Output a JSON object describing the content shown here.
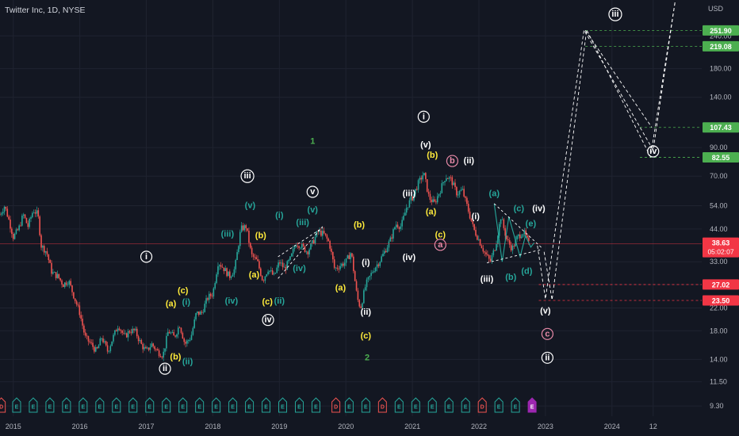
{
  "chart_data": {
    "type": "candlestick",
    "title": "Twitter Inc, 1D, NYSE",
    "currency": "USD",
    "scale": "log",
    "ylim": [
      8.5,
      320
    ],
    "xlim": [
      2014.8,
      2025.35
    ],
    "grid": true,
    "price_ticks": [
      9.3,
      11.5,
      14.0,
      18.0,
      22.0,
      27.0,
      33.0,
      44.0,
      54.0,
      70.0,
      90.0,
      140.0,
      180.0,
      240.0
    ],
    "year_ticks": [
      {
        "label": "2015",
        "t": 2015.0
      },
      {
        "label": "2016",
        "t": 2016.0
      },
      {
        "label": "2017",
        "t": 2017.0
      },
      {
        "label": "2018",
        "t": 2018.0
      },
      {
        "label": "2019",
        "t": 2019.0
      },
      {
        "label": "2020",
        "t": 2020.0
      },
      {
        "label": "2021",
        "t": 2021.0
      },
      {
        "label": "2022",
        "t": 2022.0
      },
      {
        "label": "2023",
        "t": 2023.0
      },
      {
        "label": "2024",
        "t": 2024.0
      },
      {
        "label": "12",
        "t": 2024.62
      }
    ],
    "price_path": [
      [
        2014.8,
        50
      ],
      [
        2014.87,
        54
      ],
      [
        2014.93,
        48
      ],
      [
        2015.0,
        41
      ],
      [
        2015.08,
        44
      ],
      [
        2015.15,
        50
      ],
      [
        2015.22,
        45
      ],
      [
        2015.3,
        52
      ],
      [
        2015.37,
        50
      ],
      [
        2015.42,
        38
      ],
      [
        2015.5,
        36
      ],
      [
        2015.58,
        30
      ],
      [
        2015.67,
        29
      ],
      [
        2015.75,
        27
      ],
      [
        2015.83,
        28
      ],
      [
        2015.92,
        24
      ],
      [
        2016.0,
        21
      ],
      [
        2016.08,
        17
      ],
      [
        2016.17,
        16
      ],
      [
        2016.25,
        15
      ],
      [
        2016.33,
        17
      ],
      [
        2016.42,
        15
      ],
      [
        2016.5,
        17
      ],
      [
        2016.58,
        19
      ],
      [
        2016.67,
        17
      ],
      [
        2016.75,
        18
      ],
      [
        2016.83,
        18
      ],
      [
        2016.92,
        16
      ],
      [
        2017.0,
        15
      ],
      [
        2017.08,
        16
      ],
      [
        2017.17,
        15
      ],
      [
        2017.25,
        14.5
      ],
      [
        2017.33,
        18
      ],
      [
        2017.42,
        17
      ],
      [
        2017.5,
        19
      ],
      [
        2017.58,
        16
      ],
      [
        2017.67,
        17
      ],
      [
        2017.75,
        21
      ],
      [
        2017.83,
        21
      ],
      [
        2017.92,
        24
      ],
      [
        2018.0,
        25
      ],
      [
        2018.08,
        33
      ],
      [
        2018.17,
        31
      ],
      [
        2018.25,
        29
      ],
      [
        2018.33,
        31
      ],
      [
        2018.42,
        44
      ],
      [
        2018.5,
        45
      ],
      [
        2018.58,
        35
      ],
      [
        2018.67,
        33
      ],
      [
        2018.75,
        28
      ],
      [
        2018.83,
        31
      ],
      [
        2018.92,
        29
      ],
      [
        2019.0,
        33
      ],
      [
        2019.08,
        31
      ],
      [
        2019.17,
        34
      ],
      [
        2019.25,
        39
      ],
      [
        2019.33,
        38
      ],
      [
        2019.42,
        36
      ],
      [
        2019.5,
        39
      ],
      [
        2019.58,
        43
      ],
      [
        2019.67,
        42
      ],
      [
        2019.75,
        39
      ],
      [
        2019.83,
        31
      ],
      [
        2019.92,
        32
      ],
      [
        2020.0,
        33
      ],
      [
        2020.08,
        36
      ],
      [
        2020.17,
        24
      ],
      [
        2020.22,
        22
      ],
      [
        2020.3,
        27
      ],
      [
        2020.42,
        31
      ],
      [
        2020.5,
        33
      ],
      [
        2020.58,
        36
      ],
      [
        2020.67,
        40
      ],
      [
        2020.75,
        46
      ],
      [
        2020.83,
        45
      ],
      [
        2020.92,
        54
      ],
      [
        2021.0,
        58
      ],
      [
        2021.08,
        65
      ],
      [
        2021.17,
        72
      ],
      [
        2021.25,
        58
      ],
      [
        2021.33,
        55
      ],
      [
        2021.42,
        62
      ],
      [
        2021.5,
        70
      ],
      [
        2021.58,
        68
      ],
      [
        2021.67,
        60
      ],
      [
        2021.75,
        62
      ],
      [
        2021.83,
        53
      ],
      [
        2021.92,
        44
      ],
      [
        2022.0,
        40
      ],
      [
        2022.08,
        36
      ],
      [
        2022.17,
        33
      ],
      [
        2022.25,
        38
      ],
      [
        2022.33,
        49
      ],
      [
        2022.42,
        40
      ],
      [
        2022.5,
        37
      ],
      [
        2022.58,
        41
      ],
      [
        2022.67,
        43
      ],
      [
        2022.75,
        38.63
      ]
    ],
    "wave_labels": [
      {
        "text": "i",
        "t": 2017.0,
        "y": 34.5,
        "style": "circle",
        "color": "#ffffff"
      },
      {
        "text": "ii",
        "t": 2017.28,
        "y": 12.9,
        "style": "circle",
        "color": "#ffffff"
      },
      {
        "text": "iii",
        "t": 2018.52,
        "y": 70,
        "style": "circle",
        "color": "#ffffff"
      },
      {
        "text": "iv",
        "t": 2018.83,
        "y": 19.8,
        "style": "circle",
        "color": "#ffffff"
      },
      {
        "text": "v",
        "t": 2019.5,
        "y": 61,
        "style": "circle",
        "color": "#ffffff"
      },
      {
        "text": "i",
        "t": 2021.17,
        "y": 118,
        "style": "circle",
        "color": "#ffffff"
      },
      {
        "text": "ii",
        "t": 2023.03,
        "y": 14.2,
        "style": "circle",
        "color": "#ffffff"
      },
      {
        "text": "iii",
        "t": 2024.05,
        "y": 290,
        "style": "circle",
        "color": "#ffffff"
      },
      {
        "text": "iv",
        "t": 2024.62,
        "y": 87,
        "style": "circle",
        "color": "#ffffff"
      },
      {
        "text": "a",
        "t": 2021.42,
        "y": 38.3,
        "style": "circle",
        "color": "#e88aa8"
      },
      {
        "text": "b",
        "t": 2021.6,
        "y": 80,
        "style": "circle",
        "color": "#e88aa8"
      },
      {
        "text": "c",
        "t": 2023.03,
        "y": 17.5,
        "style": "circle",
        "color": "#e88aa8"
      },
      {
        "text": "(a)",
        "t": 2017.37,
        "y": 22.8,
        "color": "#ffeb3b"
      },
      {
        "text": "(b)",
        "t": 2017.44,
        "y": 14.3,
        "color": "#ffeb3b"
      },
      {
        "text": "(c)",
        "t": 2017.55,
        "y": 25.5,
        "color": "#ffeb3b"
      },
      {
        "text": "(i)",
        "t": 2017.6,
        "y": 23.1,
        "color": "#26a69a"
      },
      {
        "text": "(ii)",
        "t": 2017.62,
        "y": 13.7,
        "color": "#26a69a"
      },
      {
        "text": "(iii)",
        "t": 2018.22,
        "y": 42,
        "color": "#26a69a"
      },
      {
        "text": "(iv)",
        "t": 2018.28,
        "y": 23.3,
        "color": "#26a69a"
      },
      {
        "text": "(v)",
        "t": 2018.56,
        "y": 54,
        "color": "#26a69a"
      },
      {
        "text": "(b)",
        "t": 2018.72,
        "y": 41.5,
        "color": "#ffeb3b"
      },
      {
        "text": "(a)",
        "t": 2018.62,
        "y": 29.4,
        "color": "#ffeb3b"
      },
      {
        "text": "(c)",
        "t": 2018.82,
        "y": 23.2,
        "color": "#ffeb3b"
      },
      {
        "text": "(ii)",
        "t": 2019.0,
        "y": 23.3,
        "color": "#26a69a"
      },
      {
        "text": "(i)",
        "t": 2019.0,
        "y": 49.5,
        "color": "#26a69a"
      },
      {
        "text": "(iii)",
        "t": 2019.35,
        "y": 46.5,
        "color": "#26a69a"
      },
      {
        "text": "(iv)",
        "t": 2019.3,
        "y": 31,
        "color": "#26a69a"
      },
      {
        "text": "(v)",
        "t": 2019.5,
        "y": 52,
        "color": "#26a69a"
      },
      {
        "text": "1",
        "t": 2019.5,
        "y": 95,
        "color": "#4caf50"
      },
      {
        "text": "2",
        "t": 2020.32,
        "y": 14.2,
        "color": "#4caf50"
      },
      {
        "text": "(b)",
        "t": 2020.2,
        "y": 45.5,
        "color": "#ffeb3b"
      },
      {
        "text": "(a)",
        "t": 2019.92,
        "y": 26.2,
        "color": "#ffeb3b"
      },
      {
        "text": "(c)",
        "t": 2020.3,
        "y": 17.2,
        "color": "#ffeb3b"
      },
      {
        "text": "(i)",
        "t": 2020.3,
        "y": 32.7,
        "color": "#ffffff"
      },
      {
        "text": "(ii)",
        "t": 2020.3,
        "y": 21.2,
        "color": "#ffffff"
      },
      {
        "text": "(iii)",
        "t": 2020.95,
        "y": 60,
        "color": "#ffffff"
      },
      {
        "text": "(iv)",
        "t": 2020.95,
        "y": 34.2,
        "color": "#ffffff"
      },
      {
        "text": "(v)",
        "t": 2021.2,
        "y": 92,
        "color": "#ffffff"
      },
      {
        "text": "(b)",
        "t": 2021.3,
        "y": 84,
        "color": "#ffeb3b"
      },
      {
        "text": "(a)",
        "t": 2021.28,
        "y": 51,
        "color": "#ffeb3b"
      },
      {
        "text": "(c)",
        "t": 2021.42,
        "y": 41.8,
        "color": "#ffeb3b"
      },
      {
        "text": "(ii)",
        "t": 2021.85,
        "y": 80,
        "color": "#ffffff"
      },
      {
        "text": "(i)",
        "t": 2021.95,
        "y": 49,
        "color": "#ffffff"
      },
      {
        "text": "(iii)",
        "t": 2022.12,
        "y": 28.3,
        "color": "#ffffff"
      },
      {
        "text": "(iv)",
        "t": 2022.9,
        "y": 52.5,
        "color": "#ffffff"
      },
      {
        "text": "(v)",
        "t": 2023.0,
        "y": 21.4,
        "color": "#ffffff"
      },
      {
        "text": "(a)",
        "t": 2022.23,
        "y": 60,
        "color": "#26a69a"
      },
      {
        "text": "(b)",
        "t": 2022.48,
        "y": 28.8,
        "color": "#26a69a"
      },
      {
        "text": "(c)",
        "t": 2022.6,
        "y": 52.5,
        "color": "#26a69a"
      },
      {
        "text": "(d)",
        "t": 2022.72,
        "y": 30.3,
        "color": "#26a69a"
      },
      {
        "text": "(e)",
        "t": 2022.78,
        "y": 46,
        "color": "#26a69a"
      }
    ],
    "wedges": [
      {
        "points": [
          [
            2018.98,
            28.5
          ],
          [
            2019.65,
            45
          ]
        ]
      },
      {
        "points": [
          [
            2018.98,
            34.5
          ],
          [
            2019.65,
            44.5
          ]
        ]
      }
    ],
    "triangle": {
      "points": [
        [
          2022.23,
          55
        ],
        [
          2022.35,
          33
        ],
        [
          2022.45,
          49
        ],
        [
          2022.62,
          34.5
        ],
        [
          2022.7,
          41.5
        ],
        [
          2022.78,
          37.5
        ],
        [
          2022.83,
          39
        ]
      ],
      "upper": [
        [
          2022.23,
          55
        ],
        [
          2022.95,
          37.2
        ]
      ],
      "lower": [
        [
          2022.12,
          32.7
        ],
        [
          2022.95,
          36.8
        ]
      ]
    },
    "projections": [
      [
        [
          2022.88,
          38
        ],
        [
          2023.0,
          23.8
        ],
        [
          2023.58,
          253
        ],
        [
          2024.62,
          88
        ],
        [
          2024.95,
          325
        ]
      ],
      [
        [
          2022.98,
          36
        ],
        [
          2023.1,
          23.6
        ],
        [
          2023.62,
          253
        ],
        [
          2024.58,
          83
        ],
        [
          2024.95,
          325
        ]
      ],
      [
        [
          2023.6,
          252
        ],
        [
          2024.6,
          107.4
        ]
      ]
    ],
    "hlines": [
      {
        "price": 251.9,
        "color": "#4caf50",
        "label": "251.90",
        "from": 2023.6
      },
      {
        "price": 219.08,
        "color": "#4caf50",
        "label": "219.08",
        "from": 2023.6
      },
      {
        "price": 107.43,
        "color": "#4caf50",
        "label": "107.43",
        "from": 2024.42
      },
      {
        "price": 82.55,
        "color": "#4caf50",
        "label": "82.55",
        "from": 2024.42
      },
      {
        "price": 27.02,
        "color": "#f23645",
        "label": "27.02",
        "from": 2022.9
      },
      {
        "price": 23.5,
        "color": "#f23645",
        "label": "23.50",
        "from": 2022.9
      }
    ],
    "current": {
      "price": 38.63,
      "label": "38.63",
      "countdown": "05:02:07",
      "color": "#f23645"
    },
    "event_markers": [
      {
        "t": 2014.82,
        "type": "D"
      },
      {
        "t": 2015.05,
        "type": "E"
      },
      {
        "t": 2015.3,
        "type": "E"
      },
      {
        "t": 2015.55,
        "type": "E"
      },
      {
        "t": 2015.8,
        "type": "E"
      },
      {
        "t": 2016.05,
        "type": "E"
      },
      {
        "t": 2016.3,
        "type": "E"
      },
      {
        "t": 2016.55,
        "type": "E"
      },
      {
        "t": 2016.8,
        "type": "E"
      },
      {
        "t": 2017.05,
        "type": "E"
      },
      {
        "t": 2017.3,
        "type": "E"
      },
      {
        "t": 2017.55,
        "type": "E"
      },
      {
        "t": 2017.8,
        "type": "E"
      },
      {
        "t": 2018.05,
        "type": "E"
      },
      {
        "t": 2018.3,
        "type": "E"
      },
      {
        "t": 2018.55,
        "type": "E"
      },
      {
        "t": 2018.8,
        "type": "E"
      },
      {
        "t": 2019.05,
        "type": "E"
      },
      {
        "t": 2019.3,
        "type": "E"
      },
      {
        "t": 2019.55,
        "type": "E"
      },
      {
        "t": 2019.85,
        "type": "D"
      },
      {
        "t": 2020.05,
        "type": "E"
      },
      {
        "t": 2020.3,
        "type": "E"
      },
      {
        "t": 2020.55,
        "type": "D"
      },
      {
        "t": 2020.8,
        "type": "E"
      },
      {
        "t": 2021.05,
        "type": "E"
      },
      {
        "t": 2021.3,
        "type": "E"
      },
      {
        "t": 2021.55,
        "type": "E"
      },
      {
        "t": 2021.8,
        "type": "E"
      },
      {
        "t": 2022.05,
        "type": "D"
      },
      {
        "t": 2022.3,
        "type": "E"
      },
      {
        "t": 2022.55,
        "type": "E"
      },
      {
        "t": 2022.8,
        "type": "U"
      }
    ]
  }
}
